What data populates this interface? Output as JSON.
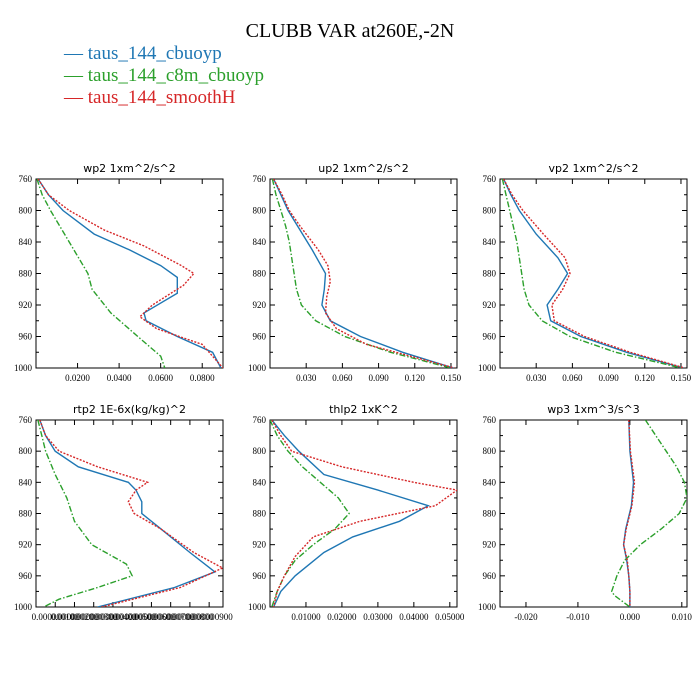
{
  "title": "CLUBB VAR at260E,-2N",
  "legend": [
    {
      "label": "taus_144_cbuoyp",
      "color": "#1f77b4",
      "dash": "solid"
    },
    {
      "label": "taus_144_c8m_cbuoyp",
      "color": "#2ca02c",
      "dash": "dashdot"
    },
    {
      "label": "taus_144_smoothH",
      "color": "#d62728",
      "dash": "dotted"
    }
  ],
  "chart_data": [
    {
      "type": "line",
      "title": "wp2   1xm^2/s^2",
      "ylabel": "pressure",
      "ylim": [
        760,
        1000
      ],
      "yticks": [
        "760",
        "800",
        "840",
        "880",
        "920",
        "960",
        "1000"
      ],
      "xlim": [
        0.0,
        0.09
      ],
      "xticks": [
        {
          "v": 0.02,
          "label": "0.0200"
        },
        {
          "v": 0.04,
          "label": "0.0400"
        },
        {
          "v": 0.06,
          "label": "0.0600"
        },
        {
          "v": 0.08,
          "label": "0.0800"
        }
      ],
      "series": [
        {
          "name": "taus_144_cbuoyp",
          "y": [
            760,
            780,
            800,
            830,
            850,
            870,
            885,
            905,
            930,
            940,
            960,
            980,
            1000
          ],
          "x": [
            0.001,
            0.006,
            0.013,
            0.028,
            0.045,
            0.06,
            0.068,
            0.068,
            0.052,
            0.053,
            0.068,
            0.085,
            0.089
          ]
        },
        {
          "name": "taus_144_c8m_cbuoyp",
          "y": [
            760,
            780,
            800,
            840,
            880,
            900,
            930,
            960,
            985,
            1000
          ],
          "x": [
            0.0005,
            0.003,
            0.007,
            0.016,
            0.025,
            0.027,
            0.036,
            0.049,
            0.06,
            0.062
          ]
        },
        {
          "name": "taus_144_smoothH",
          "y": [
            760,
            780,
            800,
            825,
            845,
            870,
            880,
            895,
            920,
            935,
            950,
            970,
            1000
          ],
          "x": [
            0.001,
            0.006,
            0.016,
            0.033,
            0.052,
            0.07,
            0.076,
            0.071,
            0.056,
            0.05,
            0.058,
            0.08,
            0.09
          ]
        }
      ]
    },
    {
      "type": "line",
      "title": "up2   1xm^2/s^2",
      "ylabel": "pressure",
      "ylim": [
        760,
        1000
      ],
      "yticks": [
        "760",
        "800",
        "840",
        "880",
        "920",
        "960",
        "1000"
      ],
      "xlim": [
        0.0,
        0.155
      ],
      "xticks": [
        {
          "v": 0.03,
          "label": "0.030"
        },
        {
          "v": 0.06,
          "label": "0.060"
        },
        {
          "v": 0.09,
          "label": "0.090"
        },
        {
          "v": 0.12,
          "label": "0.120"
        },
        {
          "v": 0.15,
          "label": "0.150"
        }
      ],
      "series": [
        {
          "name": "taus_144_cbuoyp",
          "y": [
            760,
            780,
            800,
            820,
            850,
            880,
            900,
            920,
            940,
            960,
            980,
            1000
          ],
          "x": [
            0.003,
            0.009,
            0.015,
            0.023,
            0.035,
            0.046,
            0.045,
            0.043,
            0.05,
            0.075,
            0.11,
            0.152
          ]
        },
        {
          "name": "taus_144_c8m_cbuoyp",
          "y": [
            760,
            780,
            800,
            820,
            840,
            860,
            880,
            900,
            920,
            940,
            960,
            980,
            1000
          ],
          "x": [
            0.002,
            0.005,
            0.009,
            0.013,
            0.016,
            0.018,
            0.02,
            0.022,
            0.026,
            0.038,
            0.062,
            0.1,
            0.15
          ]
        },
        {
          "name": "taus_144_smoothH",
          "y": [
            760,
            780,
            800,
            820,
            850,
            870,
            890,
            910,
            930,
            950,
            970,
            1000
          ],
          "x": [
            0.003,
            0.01,
            0.016,
            0.025,
            0.04,
            0.048,
            0.05,
            0.047,
            0.046,
            0.055,
            0.08,
            0.153
          ]
        }
      ]
    },
    {
      "type": "line",
      "title": "vp2   1xm^2/s^2",
      "ylabel": "pressure",
      "ylim": [
        760,
        1000
      ],
      "yticks": [
        "760",
        "800",
        "840",
        "880",
        "920",
        "960",
        "1000"
      ],
      "xlim": [
        0.0,
        0.155
      ],
      "xticks": [
        {
          "v": 0.03,
          "label": "0.030"
        },
        {
          "v": 0.06,
          "label": "0.060"
        },
        {
          "v": 0.09,
          "label": "0.090"
        },
        {
          "v": 0.12,
          "label": "0.120"
        },
        {
          "v": 0.15,
          "label": "0.150"
        }
      ],
      "series": [
        {
          "name": "taus_144_cbuoyp",
          "y": [
            760,
            780,
            800,
            830,
            860,
            880,
            900,
            920,
            940,
            960,
            980,
            1000
          ],
          "x": [
            0.003,
            0.009,
            0.016,
            0.03,
            0.048,
            0.056,
            0.048,
            0.039,
            0.042,
            0.067,
            0.105,
            0.152
          ]
        },
        {
          "name": "taus_144_c8m_cbuoyp",
          "y": [
            760,
            780,
            800,
            820,
            840,
            860,
            880,
            900,
            920,
            940,
            960,
            980,
            1000
          ],
          "x": [
            0.002,
            0.005,
            0.008,
            0.011,
            0.014,
            0.016,
            0.018,
            0.02,
            0.024,
            0.035,
            0.058,
            0.096,
            0.15
          ]
        },
        {
          "name": "taus_144_smoothH",
          "y": [
            760,
            780,
            800,
            830,
            860,
            880,
            900,
            920,
            940,
            960,
            980,
            1000
          ],
          "x": [
            0.003,
            0.01,
            0.019,
            0.036,
            0.054,
            0.058,
            0.052,
            0.043,
            0.045,
            0.07,
            0.108,
            0.153
          ]
        }
      ]
    },
    {
      "type": "line",
      "title": "rtp2   1E-6x(kg/kg)^2",
      "ylabel": "pressure",
      "ylim": [
        760,
        1000
      ],
      "yticks": [
        "760",
        "800",
        "840",
        "880",
        "920",
        "960",
        "1000"
      ],
      "xlim": [
        0.0,
        9.72e-07
      ],
      "xticks": [
        {
          "v": 1e-07,
          "label": "0.000000100"
        },
        {
          "v": 2e-07,
          "label": "0.000000200"
        },
        {
          "v": 3e-07,
          "label": "0.000000300"
        },
        {
          "v": 4e-07,
          "label": "0.000000400"
        },
        {
          "v": 5e-07,
          "label": "0.000000500"
        },
        {
          "v": 6e-07,
          "label": "0.000000600"
        },
        {
          "v": 7e-07,
          "label": "0.000000700"
        },
        {
          "v": 8e-07,
          "label": "0.000000800"
        },
        {
          "v": 9e-07,
          "label": "0.000000900"
        }
      ],
      "series": [
        {
          "name": "taus_144_cbuoyp",
          "y": [
            760,
            780,
            800,
            820,
            840,
            850,
            865,
            880,
            900,
            930,
            955,
            975,
            1000
          ],
          "x": [
            2e-08,
            5e-08,
            1e-07,
            2.2e-07,
            4.8e-07,
            5.2e-07,
            5.5e-07,
            5.5e-07,
            6.5e-07,
            8e-07,
            9.3e-07,
            7.2e-07,
            3.2e-07
          ]
        },
        {
          "name": "taus_144_c8m_cbuoyp",
          "y": [
            760,
            780,
            800,
            830,
            860,
            890,
            920,
            945,
            960,
            975,
            990,
            1000
          ],
          "x": [
            1e-08,
            3e-08,
            5e-08,
            1e-07,
            1.6e-07,
            2e-07,
            2.9e-07,
            4.7e-07,
            5e-07,
            3.2e-07,
            1.2e-07,
            4e-08
          ]
        },
        {
          "name": "taus_144_smoothH",
          "y": [
            760,
            780,
            800,
            820,
            840,
            850,
            865,
            880,
            900,
            930,
            950,
            975,
            1000
          ],
          "x": [
            2e-08,
            5e-08,
            1.2e-07,
            3.2e-07,
            5.8e-07,
            5.2e-07,
            4.8e-07,
            5.1e-07,
            6.5e-07,
            8.2e-07,
            9.7e-07,
            7.5e-07,
            3.4e-07
          ]
        }
      ]
    },
    {
      "type": "line",
      "title": "thlp2   1xK^2",
      "ylabel": "pressure",
      "ylim": [
        760,
        1000
      ],
      "yticks": [
        "760",
        "800",
        "840",
        "880",
        "920",
        "960",
        "1000"
      ],
      "xlim": [
        0.0,
        0.052
      ],
      "xticks": [
        {
          "v": 0.01,
          "label": "0.01000"
        },
        {
          "v": 0.02,
          "label": "0.02000"
        },
        {
          "v": 0.03,
          "label": "0.03000"
        },
        {
          "v": 0.04,
          "label": "0.04000"
        },
        {
          "v": 0.05,
          "label": "0.05000"
        }
      ],
      "series": [
        {
          "name": "taus_144_cbuoyp",
          "y": [
            760,
            780,
            800,
            830,
            850,
            870,
            890,
            910,
            930,
            960,
            980,
            1000
          ],
          "x": [
            0.0005,
            0.004,
            0.008,
            0.015,
            0.03,
            0.044,
            0.036,
            0.023,
            0.015,
            0.007,
            0.003,
            0.001
          ]
        },
        {
          "name": "taus_144_c8m_cbuoyp",
          "y": [
            760,
            780,
            800,
            820,
            840,
            860,
            880,
            900,
            920,
            940,
            960,
            980,
            1000
          ],
          "x": [
            0.0,
            0.002,
            0.005,
            0.009,
            0.014,
            0.019,
            0.022,
            0.018,
            0.012,
            0.007,
            0.004,
            0.002,
            0.0005
          ]
        },
        {
          "name": "taus_144_smoothH",
          "y": [
            760,
            780,
            800,
            820,
            840,
            850,
            870,
            890,
            910,
            935,
            960,
            980,
            1000
          ],
          "x": [
            0.0005,
            0.003,
            0.006,
            0.02,
            0.04,
            0.052,
            0.046,
            0.025,
            0.012,
            0.007,
            0.004,
            0.002,
            0.001
          ]
        }
      ]
    },
    {
      "type": "line",
      "title": "wp3   1xm^3/s^3",
      "ylabel": "pressure",
      "ylim": [
        760,
        1000
      ],
      "yticks": [
        "760",
        "800",
        "840",
        "880",
        "920",
        "960",
        "1000"
      ],
      "xlim": [
        -0.025,
        0.011
      ],
      "xticks": [
        {
          "v": -0.02,
          "label": "-0.020"
        },
        {
          "v": -0.01,
          "label": "-0.010"
        },
        {
          "v": 0.0,
          "label": "0.000"
        },
        {
          "v": 0.01,
          "label": "0.010"
        }
      ],
      "series": [
        {
          "name": "taus_144_cbuoyp",
          "y": [
            760,
            800,
            840,
            870,
            900,
            920,
            940,
            960,
            980,
            1000
          ],
          "x": [
            -0.0002,
            0.0,
            0.0007,
            0.0003,
            -0.0008,
            -0.0012,
            -0.0006,
            -0.0002,
            0.0,
            0.0
          ]
        },
        {
          "name": "taus_144_c8m_cbuoyp",
          "y": [
            760,
            780,
            800,
            820,
            840,
            860,
            880,
            900,
            920,
            940,
            960,
            980,
            985,
            1000
          ],
          "x": [
            0.003,
            0.005,
            0.007,
            0.009,
            0.0105,
            0.011,
            0.0095,
            0.006,
            0.002,
            -0.001,
            -0.0025,
            -0.0035,
            -0.003,
            0.0
          ]
        },
        {
          "name": "taus_144_smoothH",
          "y": [
            760,
            800,
            840,
            870,
            900,
            920,
            940,
            960,
            980,
            1000
          ],
          "x": [
            -0.0002,
            0.0001,
            0.0009,
            0.0004,
            -0.0007,
            -0.0012,
            -0.0005,
            -0.0002,
            0.0,
            0.0
          ]
        }
      ]
    }
  ]
}
